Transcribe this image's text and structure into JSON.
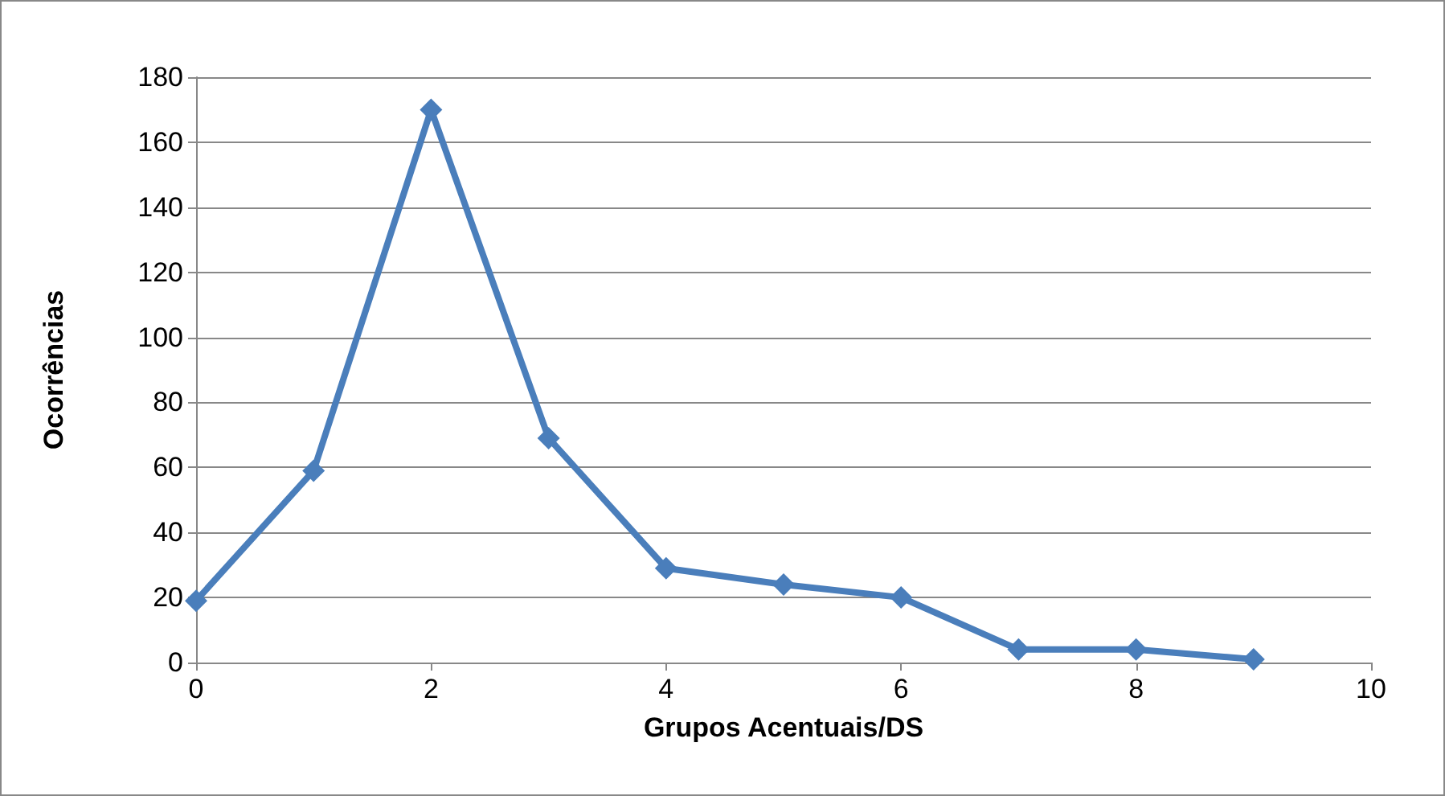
{
  "chart_data": {
    "type": "line",
    "xlabel": "Grupos Acentuais/DS",
    "ylabel": "Ocorrências",
    "x": [
      0,
      1,
      2,
      3,
      4,
      5,
      6,
      7,
      8,
      9
    ],
    "series": [
      {
        "color": "#4a7ebb",
        "values": [
          19,
          59,
          170,
          69,
          29,
          24,
          20,
          4,
          4,
          1
        ]
      }
    ],
    "xlim": [
      0,
      10
    ],
    "xticks": [
      0,
      2,
      4,
      6,
      8,
      10
    ],
    "ylim": [
      0,
      180
    ],
    "yticks": [
      0,
      20,
      40,
      60,
      80,
      100,
      120,
      140,
      160,
      180
    ],
    "grid": "y",
    "marker": "diamond",
    "line_style": "solid"
  }
}
